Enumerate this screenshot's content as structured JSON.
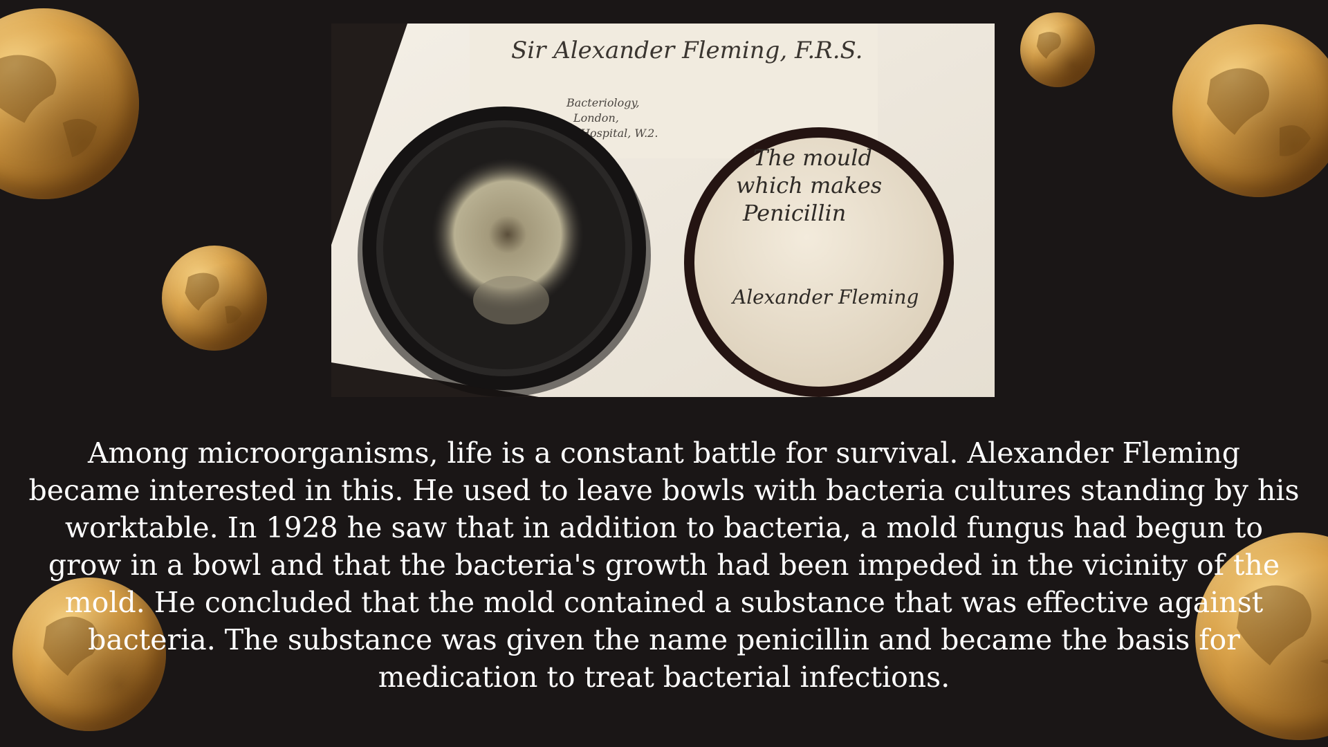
{
  "slide": {
    "background_color": "#1a1616",
    "accent_color": "#c9923c",
    "photo": {
      "description_icon": "petri-dishes-photo",
      "card_header": "Sir Alexander Fleming, F.R.S.",
      "card_lines": [
        "Bacteriology,",
        "London,",
        "Hospital, W.2."
      ],
      "lid_inscription": [
        "The mould",
        "which makes",
        "Penicillin"
      ],
      "lid_signature": "Alexander Fleming"
    },
    "caption": "Among microorganisms, life is a constant battle for survival. Alexander Fleming became interested in this. He used to leave bowls with bacteria cultures standing by his worktable. In 1928 he saw that in addition to bacteria, a mold fungus had begun to grow in a bowl and that the bacteria's growth had been impeded in the vicinity of the mold. He concluded that the mold contained a substance that was effective against bacteria. The substance was given the name penicillin and became the basis for medication to treat bacterial infections.",
    "decorations": [
      "globe-icon",
      "globe-icon",
      "globe-icon",
      "globe-icon",
      "globe-icon",
      "globe-icon",
      "globe-icon"
    ]
  }
}
